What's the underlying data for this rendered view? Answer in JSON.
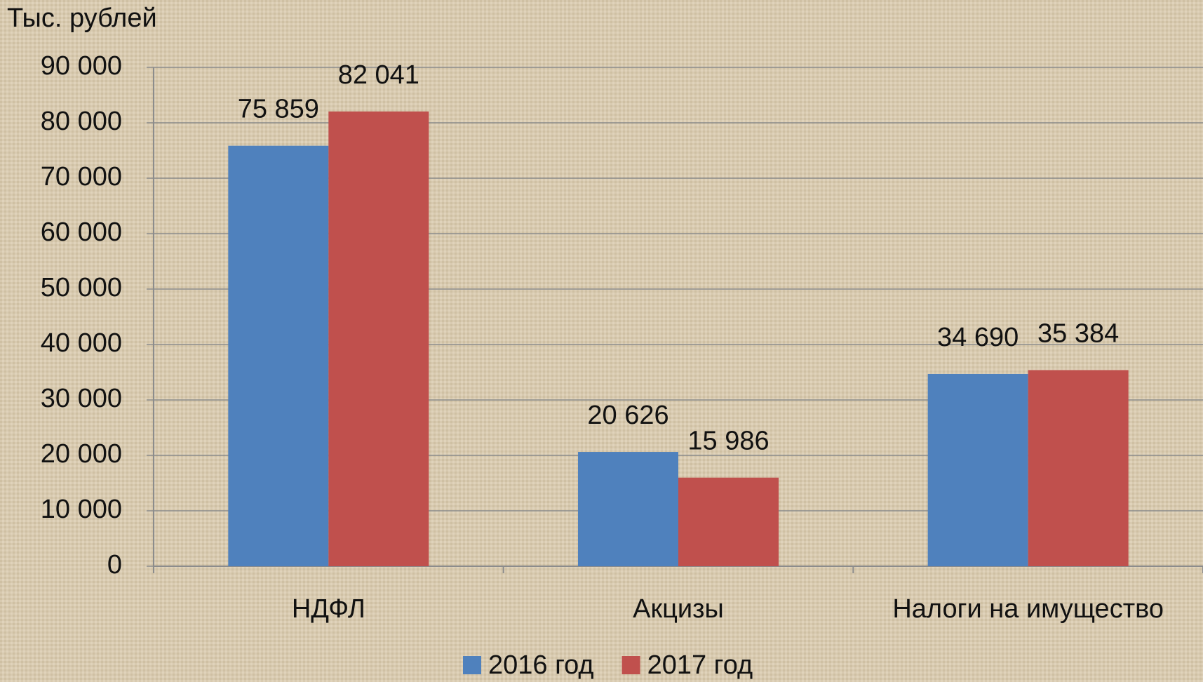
{
  "chart_data": {
    "type": "bar",
    "y_axis_label": "Тыс. рублей",
    "categories": [
      "НДФЛ",
      "Акцизы",
      "Налоги на имущество"
    ],
    "series": [
      {
        "name": "2016 год",
        "color": "#4f81bd",
        "values": [
          75859,
          20626,
          34690
        ],
        "value_labels": [
          "75 859",
          "20 626",
          "34 690"
        ]
      },
      {
        "name": "2017 год",
        "color": "#c0504d",
        "values": [
          82041,
          15986,
          35384
        ],
        "value_labels": [
          "82 041",
          "15 986",
          "35 384"
        ]
      }
    ],
    "ylim": [
      0,
      90000
    ],
    "yticks": [
      0,
      {
        "value": 10000,
        "label": "10 000"
      },
      {
        "value": 20000,
        "label": "20 000"
      },
      {
        "value": 30000,
        "label": "30 000"
      },
      {
        "value": 40000,
        "label": "40 000"
      },
      {
        "value": 50000,
        "label": "50 000"
      },
      {
        "value": 60000,
        "label": "60 000"
      },
      {
        "value": 70000,
        "label": "70 000"
      },
      {
        "value": 80000,
        "label": "80 000"
      },
      {
        "value": 90000,
        "label": "90 000"
      }
    ],
    "grid": true,
    "legend": "bottom"
  }
}
